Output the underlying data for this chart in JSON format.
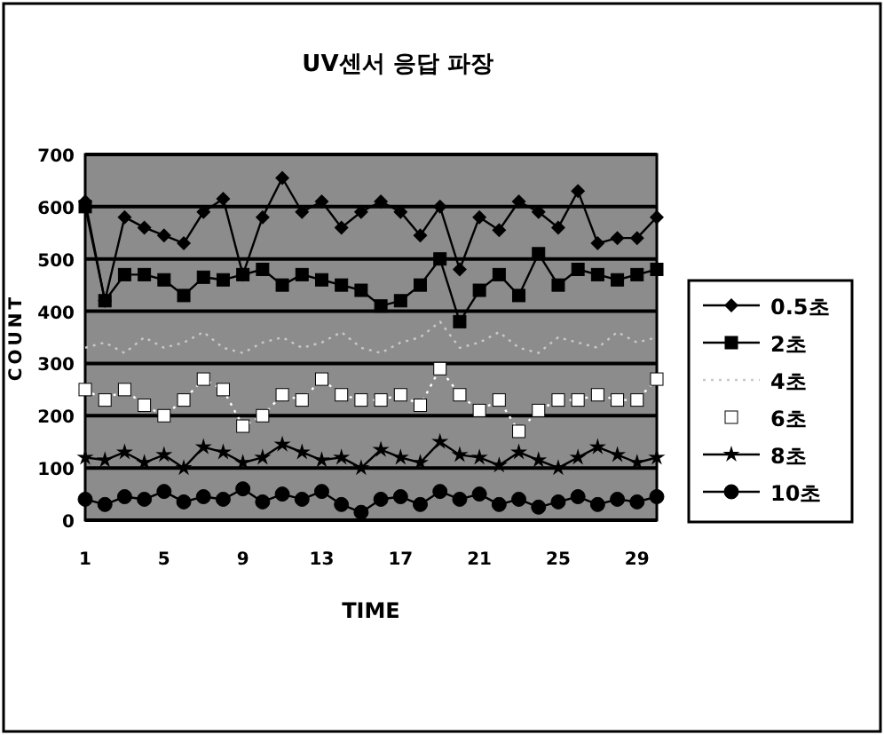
{
  "chart_data": {
    "type": "line",
    "title": "UV센서 응답 파장",
    "xlabel": "TIME",
    "ylabel": "COUNT",
    "x": [
      1,
      2,
      3,
      4,
      5,
      6,
      7,
      8,
      9,
      10,
      11,
      12,
      13,
      14,
      15,
      16,
      17,
      18,
      19,
      20,
      21,
      22,
      23,
      24,
      25,
      26,
      27,
      28,
      29,
      30
    ],
    "xlim": [
      1,
      30
    ],
    "xticks": [
      1,
      5,
      9,
      13,
      17,
      21,
      25,
      29
    ],
    "ylim": [
      0,
      700
    ],
    "yticks": [
      0,
      100,
      200,
      300,
      400,
      500,
      600,
      700
    ],
    "grid": "y",
    "legend": "right",
    "series": [
      {
        "name": "0.5초",
        "color": "#000000",
        "marker": "diamond",
        "line_style": "solid",
        "values": [
          610,
          420,
          580,
          560,
          545,
          530,
          590,
          615,
          470,
          580,
          655,
          590,
          610,
          560,
          590,
          610,
          590,
          545,
          600,
          480,
          580,
          555,
          610,
          590,
          560,
          630,
          530,
          540,
          540,
          580
        ]
      },
      {
        "name": "2초",
        "color": "#000000",
        "marker": "square",
        "line_style": "solid",
        "values": [
          600,
          420,
          470,
          470,
          460,
          430,
          465,
          460,
          470,
          480,
          450,
          470,
          460,
          450,
          440,
          410,
          420,
          450,
          500,
          380,
          440,
          470,
          430,
          510,
          450,
          480,
          470,
          460,
          470,
          480
        ]
      },
      {
        "name": "4초",
        "color": "#c8c8c8",
        "marker": "none",
        "line_style": "dotted",
        "values": [
          330,
          340,
          320,
          350,
          330,
          340,
          360,
          330,
          320,
          340,
          350,
          330,
          340,
          360,
          330,
          320,
          340,
          350,
          380,
          330,
          340,
          360,
          330,
          320,
          350,
          340,
          330,
          360,
          340,
          350
        ]
      },
      {
        "name": "6초",
        "color": "#ffffff",
        "marker": "square",
        "line_style": "dotted",
        "values": [
          250,
          230,
          250,
          220,
          200,
          230,
          270,
          250,
          180,
          200,
          240,
          230,
          270,
          240,
          230,
          230,
          240,
          220,
          290,
          240,
          210,
          230,
          170,
          210,
          230,
          230,
          240,
          230,
          230,
          270
        ]
      },
      {
        "name": "8초",
        "color": "#000000",
        "marker": "star",
        "line_style": "solid",
        "values": [
          120,
          115,
          130,
          110,
          125,
          100,
          140,
          130,
          110,
          120,
          145,
          130,
          115,
          120,
          100,
          135,
          120,
          110,
          150,
          125,
          120,
          105,
          130,
          115,
          100,
          120,
          140,
          125,
          110,
          120
        ]
      },
      {
        "name": "10초",
        "color": "#000000",
        "marker": "circle",
        "line_style": "solid",
        "values": [
          40,
          30,
          45,
          40,
          55,
          35,
          45,
          40,
          60,
          35,
          50,
          40,
          55,
          30,
          15,
          40,
          45,
          30,
          55,
          40,
          50,
          30,
          40,
          25,
          35,
          45,
          30,
          40,
          35,
          45
        ]
      }
    ]
  }
}
